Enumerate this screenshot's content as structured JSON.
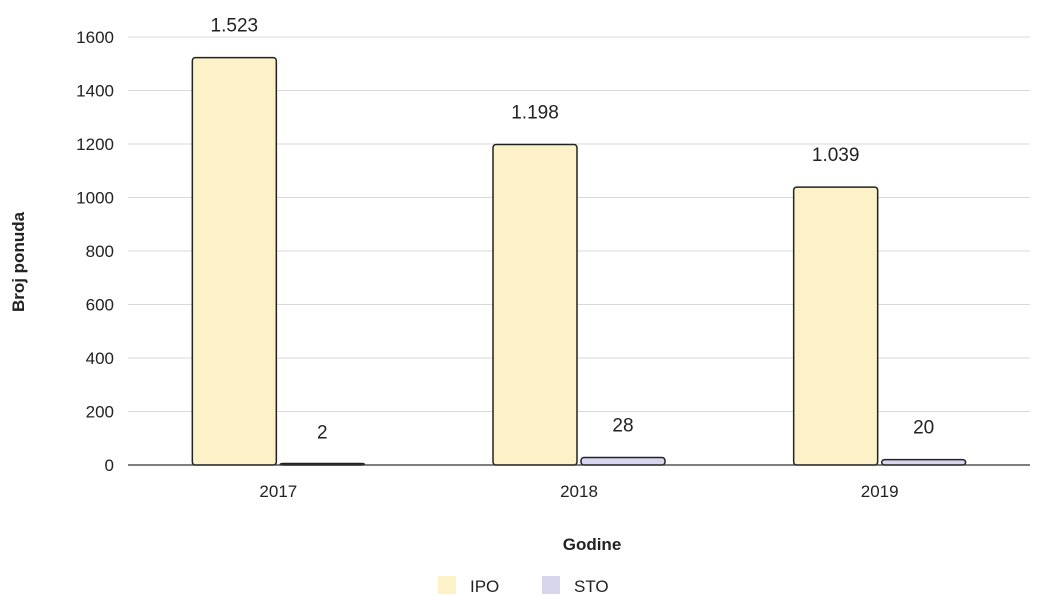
{
  "chart_data": {
    "type": "bar",
    "categories": [
      "2017",
      "2018",
      "2019"
    ],
    "series": [
      {
        "name": "IPO",
        "values": [
          1523,
          1198,
          1039
        ],
        "labels": [
          "1.523",
          "1.198",
          "1.039"
        ],
        "color": "#fdf1c7",
        "stroke": "#222222"
      },
      {
        "name": "STO",
        "values": [
          2,
          28,
          20
        ],
        "labels": [
          "2",
          "28",
          "20"
        ],
        "color": "#d8d6ef",
        "stroke": "#222222"
      }
    ],
    "xlabel": "Godine",
    "ylabel": "Broj ponuda",
    "ylim": [
      0,
      1600
    ],
    "yticks": [
      0,
      200,
      400,
      600,
      800,
      1000,
      1200,
      1400,
      1600
    ],
    "grid": true,
    "legend": "bottom-center"
  }
}
